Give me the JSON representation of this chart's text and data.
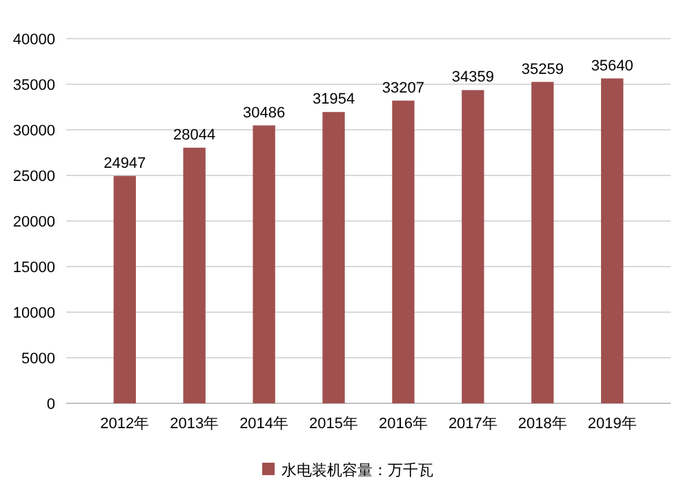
{
  "chart_data": {
    "type": "bar",
    "categories": [
      "2012年",
      "2013年",
      "2014年",
      "2015年",
      "2016年",
      "2017年",
      "2018年",
      "2019年"
    ],
    "series": [
      {
        "name": "水电装机容量：万千瓦",
        "color": "#a0504e",
        "values": [
          24947,
          28044,
          30486,
          31954,
          33207,
          34359,
          35259,
          35640
        ]
      }
    ],
    "data_labels": true,
    "ylim": [
      0,
      40000
    ],
    "yticks": [
      0,
      5000,
      10000,
      15000,
      20000,
      25000,
      30000,
      35000,
      40000
    ],
    "grid": "y",
    "legend": "bottom"
  }
}
